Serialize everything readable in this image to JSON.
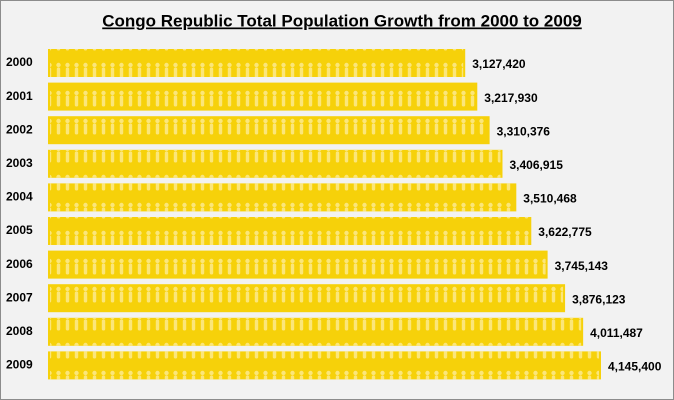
{
  "chart_data": {
    "type": "bar",
    "orientation": "horizontal",
    "title": "Congo Republic Total Population Growth from 2000 to 2009",
    "categories": [
      "2000",
      "2001",
      "2002",
      "2003",
      "2004",
      "2005",
      "2006",
      "2007",
      "2008",
      "2009"
    ],
    "values": [
      3127420,
      3217930,
      3310376,
      3406915,
      3510468,
      3622775,
      3745143,
      3876123,
      4011487,
      4145400
    ],
    "value_labels": [
      "3,127,420",
      "3,217,930",
      "3,310,376",
      "3,406,915",
      "3,510,468",
      "3,622,775",
      "3,745,143",
      "3,876,123",
      "4,011,487",
      "4,145,400"
    ],
    "color": "#f6d10a"
  }
}
